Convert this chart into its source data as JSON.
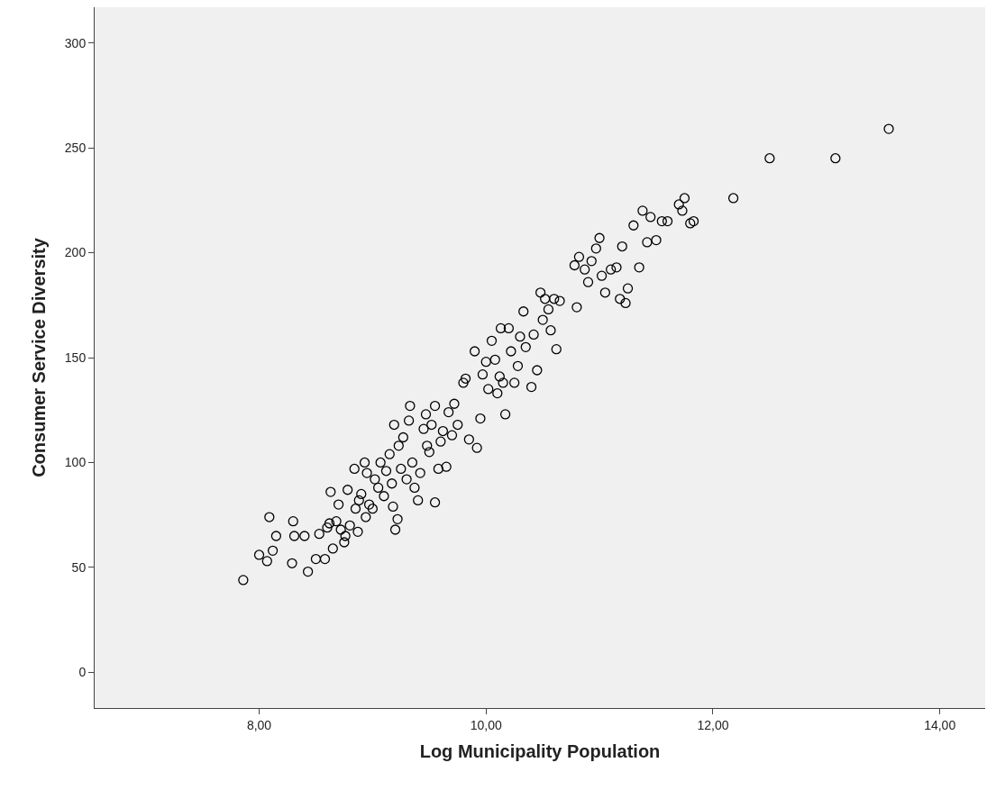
{
  "chart_data": {
    "type": "scatter",
    "xlabel": "Log Municipality Population",
    "ylabel": "Consumer Service Diversity",
    "xlim": [
      6.55,
      14.4
    ],
    "ylim": [
      -17,
      317
    ],
    "xticks": [
      {
        "value": 8,
        "label": "8,00"
      },
      {
        "value": 10,
        "label": "10,00"
      },
      {
        "value": 12,
        "label": "12,00"
      },
      {
        "value": 14,
        "label": "14,00"
      }
    ],
    "yticks": [
      0,
      50,
      100,
      150,
      200,
      250,
      300
    ],
    "marker": "circle",
    "series": [
      {
        "color": "#000000",
        "x": [
          7.86,
          8.0,
          8.07,
          8.09,
          8.12,
          8.15,
          8.29,
          8.3,
          8.31,
          8.4,
          8.43,
          8.5,
          8.53,
          8.58,
          8.6,
          8.62,
          8.63,
          8.65,
          8.68,
          8.7,
          8.72,
          8.75,
          8.76,
          8.78,
          8.8,
          8.84,
          8.85,
          8.87,
          8.88,
          8.9,
          8.93,
          8.94,
          8.95,
          8.97,
          9.0,
          9.02,
          9.05,
          9.07,
          9.1,
          9.12,
          9.15,
          9.17,
          9.18,
          9.19,
          9.2,
          9.22,
          9.23,
          9.25,
          9.27,
          9.3,
          9.32,
          9.33,
          9.35,
          9.37,
          9.4,
          9.42,
          9.45,
          9.47,
          9.48,
          9.5,
          9.52,
          9.55,
          9.55,
          9.58,
          9.6,
          9.62,
          9.65,
          9.67,
          9.7,
          9.72,
          9.75,
          9.8,
          9.82,
          9.85,
          9.9,
          9.92,
          9.95,
          9.97,
          10.0,
          10.02,
          10.05,
          10.08,
          10.1,
          10.12,
          10.13,
          10.15,
          10.17,
          10.2,
          10.22,
          10.25,
          10.28,
          10.3,
          10.33,
          10.35,
          10.4,
          10.42,
          10.45,
          10.48,
          10.5,
          10.52,
          10.55,
          10.57,
          10.6,
          10.62,
          10.65,
          10.8,
          10.78,
          10.82,
          10.87,
          10.9,
          10.93,
          10.97,
          11.0,
          11.02,
          11.05,
          11.1,
          11.15,
          11.18,
          11.2,
          11.23,
          11.25,
          11.3,
          11.35,
          11.38,
          11.42,
          11.45,
          11.5,
          11.55,
          11.6,
          11.7,
          11.73,
          11.75,
          11.8,
          11.83,
          12.18,
          12.5,
          13.08,
          13.55
        ],
        "values": [
          44,
          56,
          53,
          74,
          58,
          65,
          52,
          72,
          65,
          65,
          48,
          54,
          66,
          54,
          69,
          71,
          86,
          59,
          72,
          80,
          68,
          62,
          65,
          87,
          70,
          97,
          78,
          67,
          82,
          85,
          100,
          74,
          95,
          80,
          78,
          92,
          88,
          100,
          84,
          96,
          104,
          90,
          79,
          118,
          68,
          73,
          108,
          97,
          112,
          92,
          120,
          127,
          100,
          88,
          82,
          95,
          116,
          123,
          108,
          105,
          118,
          81,
          127,
          97,
          110,
          115,
          98,
          124,
          113,
          128,
          118,
          138,
          140,
          111,
          153,
          107,
          121,
          142,
          148,
          135,
          158,
          149,
          133,
          141,
          164,
          138,
          123,
          164,
          153,
          138,
          146,
          160,
          172,
          155,
          136,
          161,
          144,
          181,
          168,
          178,
          173,
          163,
          178,
          154,
          177,
          174,
          194,
          198,
          192,
          186,
          196,
          202,
          207,
          189,
          181,
          192,
          193,
          178,
          203,
          176,
          183,
          213,
          193,
          220,
          205,
          217,
          206,
          215,
          215,
          223,
          220,
          226,
          214,
          215,
          226,
          245,
          245,
          259
        ]
      }
    ]
  }
}
